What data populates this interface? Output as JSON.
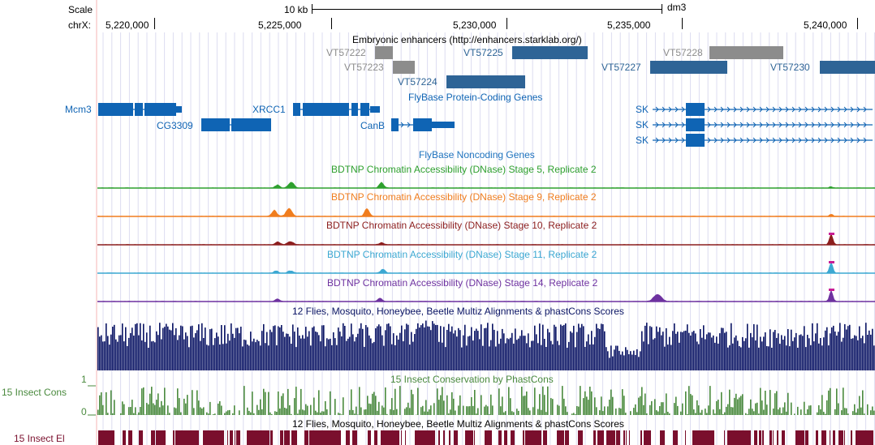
{
  "ruler": {
    "scale_label": "Scale",
    "chrom_label": "chrX:",
    "scale_bar_text": "10 kb",
    "assembly": "dm3",
    "ticks": [
      "5,220,000",
      "5,225,000",
      "5,230,000",
      "5,235,000",
      "5,240,000"
    ]
  },
  "tracks": {
    "enhancers": {
      "title": "Embryonic enhancers (http://enhancers.starklab.org/)",
      "items": [
        {
          "name": "VT57222",
          "color": "#8c8c8c"
        },
        {
          "name": "VT57223",
          "color": "#8c8c8c"
        },
        {
          "name": "VT57224",
          "color": "#2e6496"
        },
        {
          "name": "VT57225",
          "color": "#2e6496"
        },
        {
          "name": "VT57227",
          "color": "#2e6496"
        },
        {
          "name": "VT57228",
          "color": "#8c8c8c"
        },
        {
          "name": "VT57230",
          "color": "#2e6496"
        }
      ]
    },
    "protein_genes": {
      "title": "FlyBase Protein-Coding Genes",
      "color": "#0f64b4",
      "genes": [
        "Mcm3",
        "CG3309",
        "XRCC1",
        "CanB",
        "SK",
        "SK",
        "SK"
      ]
    },
    "noncoding": {
      "title": "FlyBase Noncoding Genes",
      "color": "#1e73be"
    },
    "dnase": [
      {
        "title": "BDTNP Chromatin Accessibility (DNase) Stage 5, Replicate 2",
        "color": "#2ea02e"
      },
      {
        "title": "BDTNP Chromatin Accessibility (DNase) Stage 9, Replicate 2",
        "color": "#f07d1e"
      },
      {
        "title": "BDTNP Chromatin Accessibility (DNase) Stage 10, Replicate 2",
        "color": "#8c1e1e"
      },
      {
        "title": "BDTNP Chromatin Accessibility (DNase) Stage 11, Replicate 2",
        "color": "#3ca8d2"
      },
      {
        "title": "BDTNP Chromatin Accessibility (DNase) Stage 14, Replicate 2",
        "color": "#6e32a0"
      }
    ],
    "multiz": {
      "title": "12 Flies, Mosquito, Honeybee, Beetle Multiz Alignments & phastCons Scores",
      "color": "#0a1464"
    },
    "phastcons": {
      "title": "15 Insect Conservation by PhastCons",
      "side_label": "15 Insect Cons",
      "axis_max": "1",
      "axis_min": "0",
      "color": "#4a8a3e"
    },
    "elements": {
      "title": "12 Flies, Mosquito, Honeybee, Beetle Multiz Alignments & phastCons Scores",
      "side_label": "15 Insect El",
      "color": "#7a0f2d"
    }
  }
}
